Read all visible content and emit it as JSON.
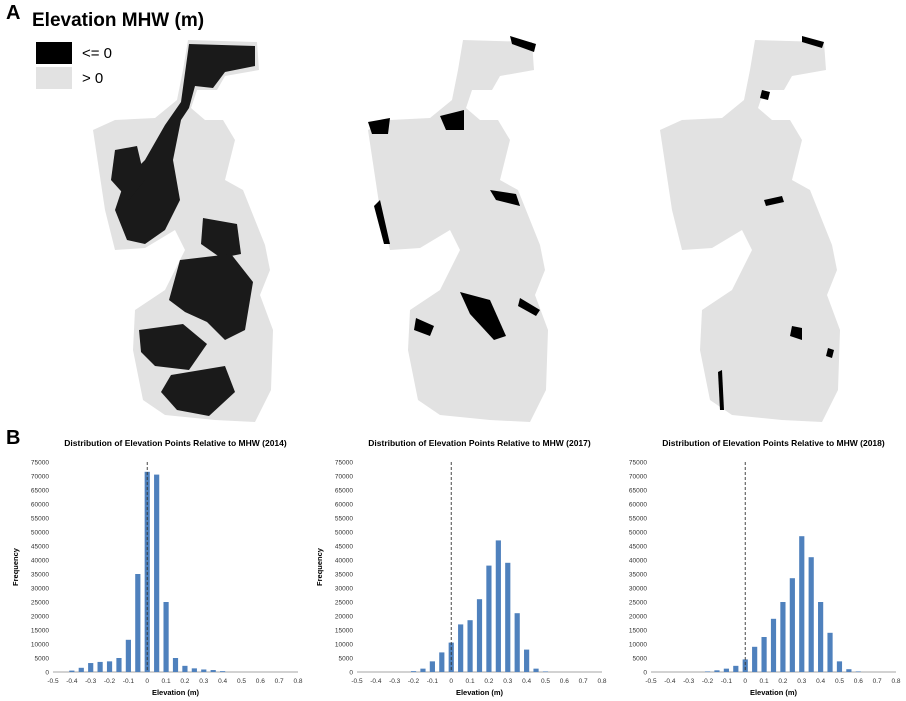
{
  "panel_a_label": "A",
  "panel_b_label": "B",
  "legend": {
    "title": "Elevation MHW (m)",
    "items": [
      {
        "label": "<= 0",
        "color": "#000000"
      },
      {
        "label": "> 0",
        "color": "#e2e2e2"
      }
    ]
  },
  "colors": {
    "bar": "#4f81bd",
    "land_low": "#1a1a1a",
    "land_high": "#e2e2e2"
  },
  "chart_data": [
    {
      "type": "bar",
      "title": "Distribution of Elevation Points Relative to MHW (2014)",
      "xlabel": "Elevation (m)",
      "ylabel": "Frequency",
      "ylim": [
        0,
        75000
      ],
      "yticks": [
        "0",
        "5000",
        "10000",
        "15000",
        "20000",
        "25000",
        "30000",
        "35000",
        "40000",
        "45000",
        "50000",
        "55000",
        "60000",
        "65000",
        "70000",
        "75000"
      ],
      "xticks": [
        "-0.5",
        "-0.4",
        "-0.3",
        "-0.2",
        "-0.1",
        "0",
        "0.1",
        "0.2",
        "0.3",
        "0.4",
        "0.5",
        "0.6",
        "0.7",
        "0.8"
      ],
      "reference_line_x": 0,
      "x": [
        -0.5,
        -0.45,
        -0.4,
        -0.35,
        -0.3,
        -0.25,
        -0.2,
        -0.15,
        -0.1,
        -0.05,
        0,
        0.05,
        0.1,
        0.15,
        0.2,
        0.25,
        0.3,
        0.35,
        0.4,
        0.45,
        0.5,
        0.55,
        0.6,
        0.65,
        0.7,
        0.75,
        0.8
      ],
      "values": [
        0,
        0,
        500,
        1500,
        3200,
        3600,
        3800,
        5000,
        11500,
        35000,
        71500,
        70500,
        25000,
        5000,
        2200,
        1300,
        900,
        700,
        300,
        0,
        0,
        0,
        0,
        0,
        0,
        0,
        0
      ]
    },
    {
      "type": "bar",
      "title": "Distribution of Elevation Points Relative to MHW (2017)",
      "xlabel": "Elevation (m)",
      "ylabel": "Frequency",
      "ylim": [
        0,
        75000
      ],
      "yticks": [
        "0",
        "5000",
        "10000",
        "15000",
        "20000",
        "25000",
        "30000",
        "35000",
        "40000",
        "45000",
        "50000",
        "55000",
        "60000",
        "65000",
        "70000",
        "75000"
      ],
      "xticks": [
        "-0.5",
        "-0.4",
        "-0.3",
        "-0.2",
        "-0.1",
        "0",
        "0.1",
        "0.2",
        "0.3",
        "0.4",
        "0.5",
        "0.6",
        "0.7",
        "0.8"
      ],
      "reference_line_x": 0,
      "x": [
        -0.5,
        -0.45,
        -0.4,
        -0.35,
        -0.3,
        -0.25,
        -0.2,
        -0.15,
        -0.1,
        -0.05,
        0,
        0.05,
        0.1,
        0.15,
        0.2,
        0.25,
        0.3,
        0.35,
        0.4,
        0.45,
        0.5,
        0.55,
        0.6,
        0.65,
        0.7,
        0.75,
        0.8
      ],
      "values": [
        0,
        0,
        0,
        0,
        0,
        0,
        300,
        1200,
        3800,
        7000,
        10500,
        17000,
        18500,
        26000,
        38000,
        47000,
        39000,
        21000,
        8000,
        1200,
        200,
        0,
        0,
        0,
        0,
        0,
        0
      ]
    },
    {
      "type": "bar",
      "title": "Distribution of Elevation Points Relative to MHW (2018)",
      "xlabel": "Elevation (m)",
      "ylabel": "",
      "ylim": [
        0,
        75000
      ],
      "yticks": [
        "0",
        "5000",
        "10000",
        "15000",
        "20000",
        "25000",
        "30000",
        "35000",
        "40000",
        "45000",
        "50000",
        "55000",
        "60000",
        "65000",
        "70000",
        "75000"
      ],
      "xticks": [
        "-0.5",
        "-0.4",
        "-0.3",
        "-0.2",
        "-0.1",
        "0",
        "0.1",
        "0.2",
        "0.3",
        "0.4",
        "0.5",
        "0.6",
        "0.7",
        "0.8"
      ],
      "reference_line_x": 0,
      "x": [
        -0.5,
        -0.45,
        -0.4,
        -0.35,
        -0.3,
        -0.25,
        -0.2,
        -0.15,
        -0.1,
        -0.05,
        0,
        0.05,
        0.1,
        0.15,
        0.2,
        0.25,
        0.3,
        0.35,
        0.4,
        0.45,
        0.5,
        0.55,
        0.6,
        0.65,
        0.7,
        0.75,
        0.8
      ],
      "values": [
        0,
        0,
        0,
        0,
        0,
        0,
        200,
        600,
        1200,
        2200,
        4500,
        9000,
        12500,
        19000,
        25000,
        33500,
        48500,
        41000,
        25000,
        14000,
        3800,
        1000,
        200,
        0,
        0,
        0,
        0
      ]
    }
  ]
}
